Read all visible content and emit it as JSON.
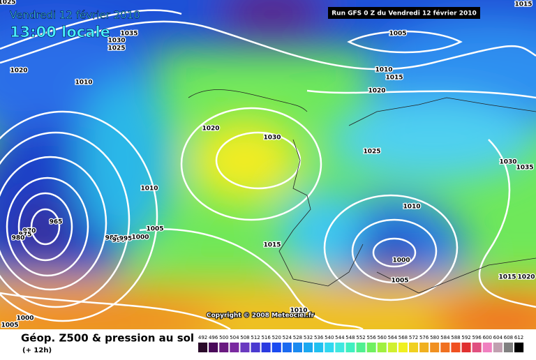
{
  "header": {
    "date": "Vendredi 12 février 2010",
    "time": "13:00 locale",
    "run": "Run GFS 0 Z du Vendredi 12 février 2010"
  },
  "isobar_labels": [
    "1025",
    "1015",
    "1035",
    "1030",
    "1025",
    "1020",
    "1010",
    "1005",
    "1010",
    "1015",
    "1020",
    "1020",
    "1030",
    "1025",
    "1030",
    "1035",
    "1010",
    "1010",
    "1005",
    "965",
    "970",
    "975",
    "980",
    "985",
    "990",
    "995",
    "1000",
    "1015",
    "1000",
    "1005",
    "1015",
    "1020",
    "1000",
    "1005",
    "1010"
  ],
  "copyright": "Copyright © 2008 Meteociel.fr",
  "footer": {
    "title": "Géop. Z500 & pression au sol",
    "subtitle": "(+ 12h)"
  },
  "legend": {
    "values": [
      492,
      496,
      500,
      504,
      508,
      512,
      516,
      520,
      524,
      528,
      532,
      536,
      540,
      544,
      548,
      552,
      556,
      560,
      564,
      568,
      572,
      576,
      580,
      584,
      588,
      592,
      596,
      600,
      604,
      608,
      612
    ]
  }
}
